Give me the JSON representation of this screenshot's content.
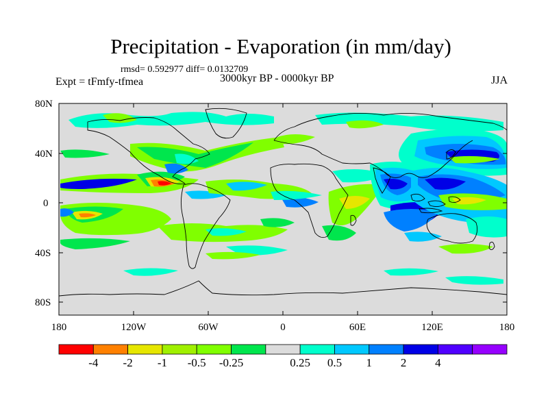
{
  "header": {
    "title": "Precipitation - Evaporation (in mm/day)",
    "stats": "rmsd= 0.592977 diff= 0.0132709",
    "experiment": "Expt = tFmfy-tfmea",
    "period": "3000kyr BP - 0000kyr BP",
    "season": "JJA"
  },
  "map": {
    "background_color": "#dcdcdc",
    "lat_ticks": [
      "80N",
      "40N",
      "0",
      "40S",
      "80S"
    ],
    "lon_ticks": [
      "180",
      "120W",
      "60W",
      "0",
      "60E",
      "120E",
      "180"
    ]
  },
  "colorbar": {
    "colors": [
      "#ff0000",
      "#ff8000",
      "#e6e600",
      "#a0f000",
      "#80ff00",
      "#00e64d",
      "#dcdcdc",
      "#00ffcc",
      "#00c8ff",
      "#0080ff",
      "#0000e6",
      "#5000ff",
      "#9600ff"
    ],
    "labels": [
      "-4",
      "-2",
      "-1",
      "-0.5",
      "-0.25",
      "0.25",
      "0.5",
      "1",
      "2",
      "4"
    ]
  }
}
